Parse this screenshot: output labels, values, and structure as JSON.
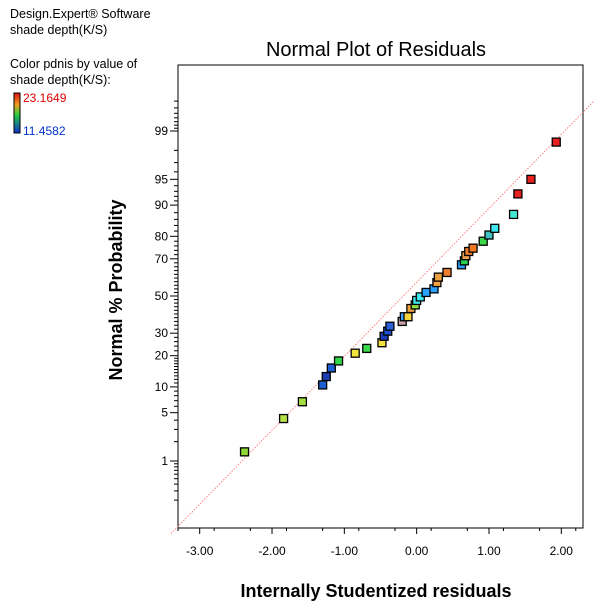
{
  "software": {
    "line1": "Design.Expert® Software",
    "line2": "shade depth(K/S)"
  },
  "legend": {
    "line1": "Color pdnis by value of",
    "line2": "shade depth(K/S):",
    "max_label": "23.1649",
    "min_label": "11.4582",
    "max_color": "#e00000",
    "min_color": "#0033cc"
  },
  "chart_data": {
    "type": "scatter",
    "title": "Normal Plot of Residuals",
    "xlabel": "Internally Studentized residuals",
    "ylabel": "Normal % Probability",
    "xlim": [
      -3.3,
      2.3
    ],
    "x_ticks": [
      -3.0,
      -2.0,
      -1.0,
      0.0,
      1.0,
      2.0
    ],
    "x_tick_labels": [
      "-3.00",
      "-2.00",
      "-1.00",
      "0.00",
      "1.00",
      "2.00"
    ],
    "y_scale": "normal-probability",
    "y_ticks": [
      1,
      5,
      10,
      20,
      30,
      50,
      70,
      80,
      90,
      95,
      99
    ],
    "y_tick_labels": [
      "1",
      "5",
      "10",
      "20",
      "30",
      "50",
      "70",
      "80",
      "90",
      "95",
      "99"
    ],
    "reference_line": {
      "color": "#ff8080",
      "from": [
        -3.4,
        0.04
      ],
      "to": [
        2.45,
        99.7
      ]
    },
    "points": [
      {
        "x": -2.38,
        "y": 1.4,
        "color": "#8fd63a"
      },
      {
        "x": -1.84,
        "y": 4.2,
        "color": "#b5e04a"
      },
      {
        "x": -1.58,
        "y": 6.8,
        "color": "#a5e040"
      },
      {
        "x": -1.3,
        "y": 10.5,
        "color": "#1e5fd0"
      },
      {
        "x": -1.25,
        "y": 12.8,
        "color": "#1c3fb0"
      },
      {
        "x": -1.18,
        "y": 15.5,
        "color": "#1f5fd6"
      },
      {
        "x": -1.08,
        "y": 18.0,
        "color": "#33d84a"
      },
      {
        "x": -0.85,
        "y": 21.0,
        "color": "#f2e53a"
      },
      {
        "x": -0.69,
        "y": 23.0,
        "color": "#3ad84a"
      },
      {
        "x": -0.48,
        "y": 25.5,
        "color": "#f4e23c"
      },
      {
        "x": -0.45,
        "y": 28.5,
        "color": "#1a3db5"
      },
      {
        "x": -0.4,
        "y": 31.0,
        "color": "#1c4fd0"
      },
      {
        "x": -0.37,
        "y": 33.5,
        "color": "#2a60d8"
      },
      {
        "x": -0.2,
        "y": 36.0,
        "color": "#c8a0a8"
      },
      {
        "x": -0.17,
        "y": 38.5,
        "color": "#3aa0ff"
      },
      {
        "x": -0.12,
        "y": 38.5,
        "color": "#f4d23c"
      },
      {
        "x": -0.08,
        "y": 43.0,
        "color": "#f0a040"
      },
      {
        "x": -0.02,
        "y": 45.0,
        "color": "#8fe040"
      },
      {
        "x": 0.0,
        "y": 47.5,
        "color": "#40e8f0"
      },
      {
        "x": 0.05,
        "y": 49.5,
        "color": "#40e8f0"
      },
      {
        "x": 0.13,
        "y": 52.0,
        "color": "#2aa0ff"
      },
      {
        "x": 0.24,
        "y": 54.0,
        "color": "#2aa0ff"
      },
      {
        "x": 0.28,
        "y": 57.5,
        "color": "#f0a040"
      },
      {
        "x": 0.3,
        "y": 60.5,
        "color": "#e8a040"
      },
      {
        "x": 0.42,
        "y": 63.0,
        "color": "#f08030"
      },
      {
        "x": 0.62,
        "y": 67.0,
        "color": "#2aa0ff"
      },
      {
        "x": 0.66,
        "y": 69.0,
        "color": "#2ad050"
      },
      {
        "x": 0.68,
        "y": 71.5,
        "color": "#e8a050"
      },
      {
        "x": 0.72,
        "y": 73.5,
        "color": "#f08030"
      },
      {
        "x": 0.78,
        "y": 75.0,
        "color": "#f07820"
      },
      {
        "x": 0.92,
        "y": 78.0,
        "color": "#3ad84a"
      },
      {
        "x": 1.0,
        "y": 80.5,
        "color": "#40c0c0"
      },
      {
        "x": 1.08,
        "y": 83.0,
        "color": "#40e8f0"
      },
      {
        "x": 1.34,
        "y": 87.5,
        "color": "#40e8d0"
      },
      {
        "x": 1.4,
        "y": 92.5,
        "color": "#e82020"
      },
      {
        "x": 1.58,
        "y": 95.0,
        "color": "#e82020"
      },
      {
        "x": 1.93,
        "y": 98.5,
        "color": "#e82020"
      }
    ]
  }
}
